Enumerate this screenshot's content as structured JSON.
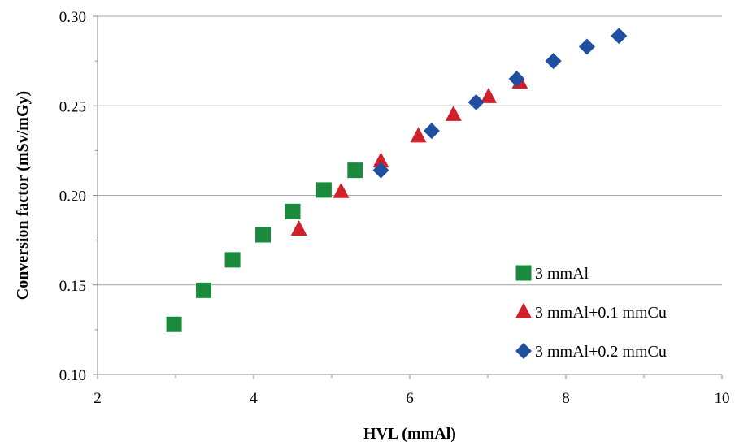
{
  "chart_data": {
    "type": "scatter",
    "xlabel": "HVL (mmAl)",
    "ylabel": "Conversion factor (mSv/mGy)",
    "xlim": [
      2,
      10
    ],
    "ylim": [
      0.1,
      0.3
    ],
    "x_ticks": [
      "2",
      "4",
      "6",
      "8",
      "10"
    ],
    "y_ticks": [
      "0.10",
      "0.15",
      "0.20",
      "0.25",
      "0.30"
    ],
    "grid": "horizontal",
    "legend_position": "bottom-right",
    "series": [
      {
        "name": "3 mmAl",
        "marker": "square",
        "color": "#1a8a3c",
        "x": [
          2.98,
          3.36,
          3.73,
          4.12,
          4.5,
          4.9,
          5.3
        ],
        "y": [
          0.128,
          0.147,
          0.164,
          0.178,
          0.191,
          0.203,
          0.214
        ]
      },
      {
        "name": "3 mmAl+0.1 mmCu",
        "marker": "triangle",
        "color": "#d0202a",
        "x": [
          4.58,
          5.12,
          5.63,
          6.11,
          6.56,
          7.01,
          7.41
        ],
        "y": [
          0.181,
          0.202,
          0.219,
          0.233,
          0.245,
          0.255,
          0.263
        ]
      },
      {
        "name": "3 mmAl+0.2 mmCu",
        "marker": "diamond",
        "color": "#1f4fa0",
        "x": [
          5.63,
          6.28,
          6.85,
          7.37,
          7.84,
          8.27,
          8.68
        ],
        "y": [
          0.214,
          0.236,
          0.252,
          0.265,
          0.275,
          0.283,
          0.289
        ]
      }
    ]
  }
}
